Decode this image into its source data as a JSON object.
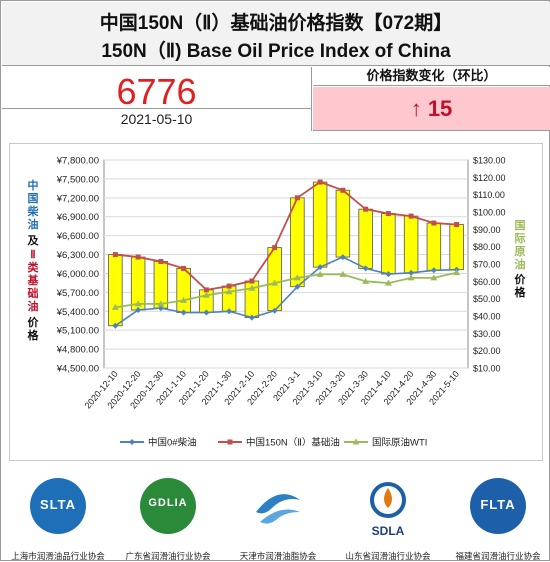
{
  "header": {
    "title_cn": "中国150N（Ⅱ）基础油价格指数【072期】",
    "title_en": "150N（Ⅱ) Base Oil Price Index of China"
  },
  "index": {
    "value": "6776",
    "date": "2021-05-10"
  },
  "change": {
    "label": "价格指数变化（环比）",
    "value": "↑ 15"
  },
  "chart_data": {
    "type": "line",
    "categories": [
      "2020-12-10",
      "2020-12-20",
      "2020-12-30",
      "2021-1-10",
      "2021-1-20",
      "2021-1-30",
      "2021-2-10",
      "2021-2-20",
      "2021-3-1",
      "2021-3-10",
      "2021-3-20",
      "2021-3-30",
      "2021-4-10",
      "2021-4-20",
      "2021-4-30",
      "2021-5-10"
    ],
    "left_axis": {
      "min": 4500,
      "max": 7800,
      "step": 300,
      "ticks": [
        "¥7,800.00",
        "¥7,500.00",
        "¥7,200.00",
        "¥6,900.00",
        "¥6,600.00",
        "¥6,300.00",
        "¥6,000.00",
        "¥5,700.00",
        "¥5,400.00",
        "¥5,100.00",
        "¥4,800.00",
        "¥4,500.00"
      ],
      "label_blue": "中国柴油",
      "label_and": "及",
      "label_red": "Ⅱ类基础油",
      "label_price": "价格"
    },
    "right_axis": {
      "min": 10,
      "max": 130,
      "step": 10,
      "ticks": [
        "$130.00",
        "$120.00",
        "$110.00",
        "$100.00",
        "$90.00",
        "$80.00",
        "$70.00",
        "$60.00",
        "$50.00",
        "$40.00",
        "$30.00",
        "$20.00",
        "$10.00"
      ],
      "label_green": "国际原油",
      "label_price": "价格"
    },
    "series": [
      {
        "name": "中国0#柴油",
        "axis": "left",
        "color": "#4f81bd",
        "values": [
          5170,
          5420,
          5450,
          5380,
          5380,
          5400,
          5300,
          5410,
          5790,
          6100,
          6260,
          6080,
          5990,
          6010,
          6050,
          6060
        ]
      },
      {
        "name": "中国150N（Ⅱ）基础油",
        "axis": "left",
        "color": "#c0504d",
        "values": [
          6300,
          6260,
          6190,
          6080,
          5740,
          5800,
          5880,
          6410,
          7200,
          7450,
          7320,
          7020,
          6950,
          6910,
          6800,
          6776
        ]
      },
      {
        "name": "国际原油WTI",
        "axis": "right",
        "color": "#9bbb59",
        "values": [
          45,
          47,
          47,
          49,
          52,
          54,
          56,
          59,
          62,
          64,
          64,
          60,
          59,
          62,
          62,
          65
        ]
      }
    ],
    "bars": {
      "color": "#ffff00",
      "border": "#555555"
    },
    "grid": true,
    "legend_position": "bottom"
  },
  "logos": [
    {
      "name": "slta-logo",
      "badge": "SLTA",
      "caption": "上海市润滑油品行业协会",
      "color": "#1f6fb8"
    },
    {
      "name": "gdlia-logo",
      "badge": "GDLIA",
      "caption": "广东省润滑油行业协会",
      "color": "#2a8a3a"
    },
    {
      "name": "tianjin-logo",
      "badge": "",
      "caption": "天津市润滑油脂协会",
      "color": "#2b7fc4"
    },
    {
      "name": "sdla-logo",
      "badge": "SDLA",
      "caption": "山东省润滑油行业协会",
      "color": "#e07b12"
    },
    {
      "name": "flta-logo",
      "badge": "FLTA",
      "caption": "福建省润滑油行业协会",
      "color": "#1d5fa8"
    }
  ]
}
